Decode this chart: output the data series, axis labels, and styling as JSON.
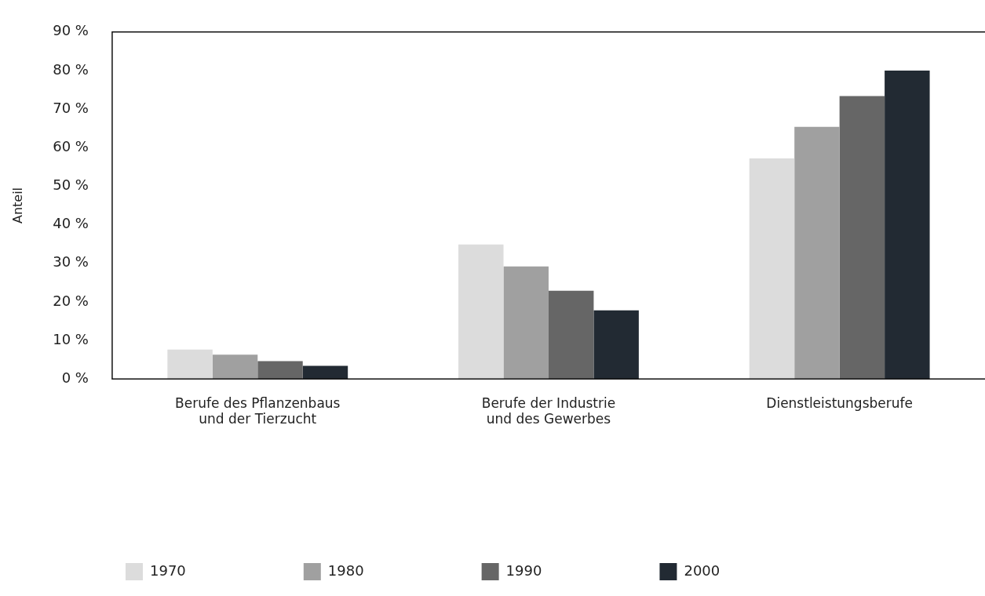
{
  "chart_data": {
    "type": "bar",
    "ylabel": "Anteil",
    "categories": [
      "Berufe des Pflanzenbaus\nund der Tierzucht",
      "Berufe der Industrie\nund des Gewerbes",
      "Dienstleistungsberufe"
    ],
    "series": [
      {
        "name": "1970",
        "color": "#dcdcdc",
        "values": [
          7.6,
          34.9,
          57.2
        ]
      },
      {
        "name": "1980",
        "color": "#a0a0a0",
        "values": [
          6.3,
          29.2,
          65.4
        ]
      },
      {
        "name": "1990",
        "color": "#666666",
        "values": [
          4.6,
          22.9,
          73.4
        ]
      },
      {
        "name": "2000",
        "color": "#222a33",
        "values": [
          3.4,
          17.8,
          80
        ]
      }
    ],
    "ylim": [
      0,
      90
    ],
    "yticks": [
      {
        "value": 0,
        "label": "0 %"
      },
      {
        "value": 10,
        "label": "10 %"
      },
      {
        "value": 20,
        "label": "20 %"
      },
      {
        "value": 30,
        "label": "30 %"
      },
      {
        "value": 40,
        "label": "40 %"
      },
      {
        "value": 50,
        "label": "50 %"
      },
      {
        "value": 60,
        "label": "60 %"
      },
      {
        "value": 70,
        "label": "70 %"
      },
      {
        "value": 80,
        "label": "80 %"
      },
      {
        "value": 90,
        "label": "90 %"
      }
    ],
    "grid": false,
    "legend": "bottom"
  }
}
